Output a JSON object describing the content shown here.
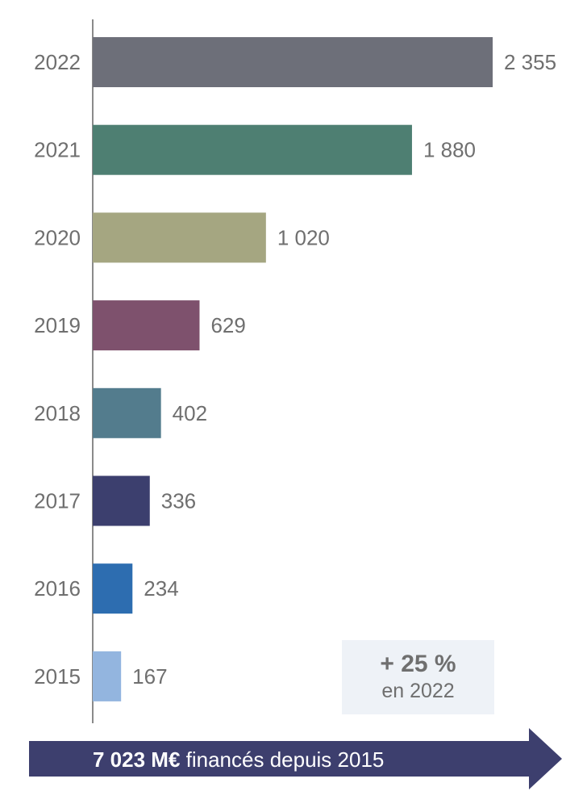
{
  "chart_data": {
    "type": "bar",
    "orientation": "horizontal",
    "categories": [
      "2022",
      "2021",
      "2020",
      "2019",
      "2018",
      "2017",
      "2016",
      "2015"
    ],
    "values": [
      2355,
      1880,
      1020,
      629,
      402,
      336,
      234,
      167
    ],
    "value_labels": [
      "2 355",
      "1 880",
      "1 020",
      "629",
      "402",
      "336",
      "234",
      "167"
    ],
    "colors": [
      "#6d6f79",
      "#4e7f72",
      "#a5a681",
      "#7e516d",
      "#537c8d",
      "#3c3f6e",
      "#2d6db0",
      "#93b5df"
    ],
    "xlim": [
      0,
      2355
    ],
    "grid": false
  },
  "callout": {
    "headline": "+ 25 %",
    "subline": "en 2022"
  },
  "banner": {
    "strong_text": "7 023 M€",
    "text": " financés  depuis 2015",
    "color": "#3d3f6e"
  }
}
